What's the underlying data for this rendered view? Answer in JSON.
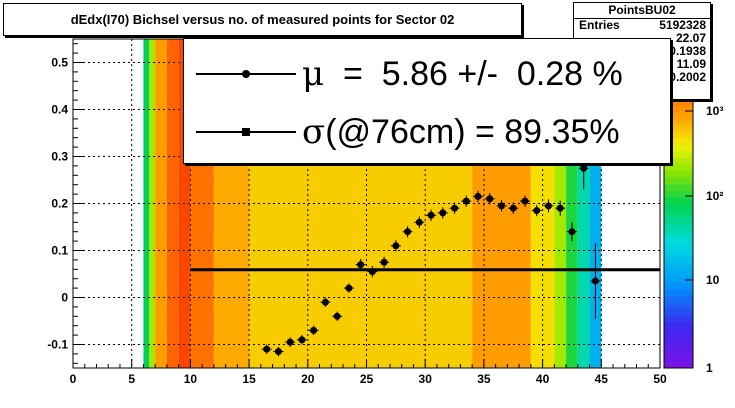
{
  "title": "dEdx(I70) Bichsel versus no. of measured points for Sector 02",
  "stats": {
    "name": "PointsBU02",
    "rows": [
      {
        "label": "Entries",
        "value": "5192328"
      },
      {
        "label": "",
        "value": "22.07"
      },
      {
        "label": "",
        "value": "0.1938"
      },
      {
        "label": "",
        "value": "11.09"
      },
      {
        "label": "",
        "value": "0.2002"
      }
    ]
  },
  "legend": {
    "mu_symbol": "μ",
    "mu_text": "  =  5.86 +/-  0.28 %",
    "sigma_symbol": "σ",
    "sigma_text": "(@76cm) = 89.35%"
  },
  "chart_data": {
    "type": "heatmap",
    "title": "dEdx(I70) Bichsel versus no. of measured points for Sector 02",
    "xlim": [
      0,
      50
    ],
    "ylim": [
      -0.15,
      0.55
    ],
    "x_ticks": [
      "0",
      "5",
      "10",
      "15",
      "20",
      "25",
      "30",
      "35",
      "40",
      "45",
      "50"
    ],
    "y_ticks": [
      "-0.1",
      "0",
      "0.1",
      "0.2",
      "0.3",
      "0.4",
      "0.5"
    ],
    "grid": true,
    "colorbar": {
      "scale": "log",
      "ticks": [
        "1",
        "10",
        "10²",
        "10³"
      ]
    },
    "heatmap_columns": [
      {
        "x0": 6,
        "x1": 6.5,
        "level": 0.5
      },
      {
        "x0": 6.5,
        "x1": 7,
        "level": 0.62
      },
      {
        "x0": 7,
        "x1": 8,
        "level": 0.78
      },
      {
        "x0": 8,
        "x1": 9,
        "level": 0.86
      },
      {
        "x0": 9,
        "x1": 10,
        "level": 0.9
      },
      {
        "x0": 10,
        "x1": 12,
        "level": 0.84
      },
      {
        "x0": 12,
        "x1": 15,
        "level": 0.76
      },
      {
        "x0": 15,
        "x1": 34,
        "level": 0.72
      },
      {
        "x0": 34,
        "x1": 39,
        "level": 0.78
      },
      {
        "x0": 39,
        "x1": 41,
        "level": 0.7
      },
      {
        "x0": 41,
        "x1": 42,
        "level": 0.62
      },
      {
        "x0": 42,
        "x1": 43,
        "level": 0.52
      },
      {
        "x0": 43,
        "x1": 44,
        "level": 0.42
      },
      {
        "x0": 44,
        "x1": 45,
        "level": 0.3
      }
    ],
    "series": [
      {
        "name": "mean",
        "x": [
          16.5,
          17.5,
          18.5,
          19.5,
          20.5,
          21.5,
          22.5,
          23.5,
          24.5,
          25.5,
          26.5,
          27.5,
          28.5,
          29.5,
          30.5,
          31.5,
          32.5,
          33.5,
          34.5,
          35.5,
          36.5,
          37.5,
          38.5,
          39.5,
          40.5,
          41.5,
          42.5,
          43.5,
          44.5
        ],
        "y": [
          -0.11,
          -0.115,
          -0.095,
          -0.09,
          -0.07,
          -0.01,
          -0.04,
          0.02,
          0.07,
          0.055,
          0.075,
          0.11,
          0.14,
          0.16,
          0.175,
          0.18,
          0.19,
          0.205,
          0.215,
          0.21,
          0.195,
          0.19,
          0.205,
          0.185,
          0.195,
          0.19,
          0.14,
          0.275,
          0.035
        ],
        "yerr": [
          0.01,
          0.01,
          0.01,
          0.01,
          0.01,
          0.01,
          0.01,
          0.01,
          0.012,
          0.012,
          0.012,
          0.012,
          0.012,
          0.012,
          0.012,
          0.012,
          0.012,
          0.012,
          0.012,
          0.012,
          0.012,
          0.012,
          0.012,
          0.012,
          0.014,
          0.016,
          0.02,
          0.045,
          0.08
        ]
      },
      {
        "name": "sigma",
        "x": [
          10,
          50
        ],
        "y": [
          0.059,
          0.059
        ]
      }
    ]
  }
}
